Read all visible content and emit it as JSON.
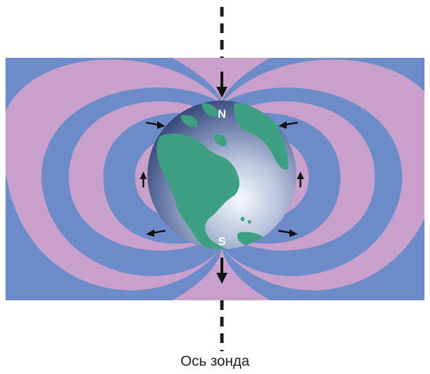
{
  "diagram": {
    "pole_labels": {
      "north": "N",
      "south": "S"
    },
    "caption": "Ось зонда",
    "colors": {
      "field_band_blue": "#6c8bc8",
      "field_band_pink": "#c8a0cc",
      "ocean": "#2e4a86",
      "land": "#3ea080",
      "axis_line": "#1c1c1c",
      "arrow": "#111111",
      "pole_label": "#ffffff"
    }
  }
}
